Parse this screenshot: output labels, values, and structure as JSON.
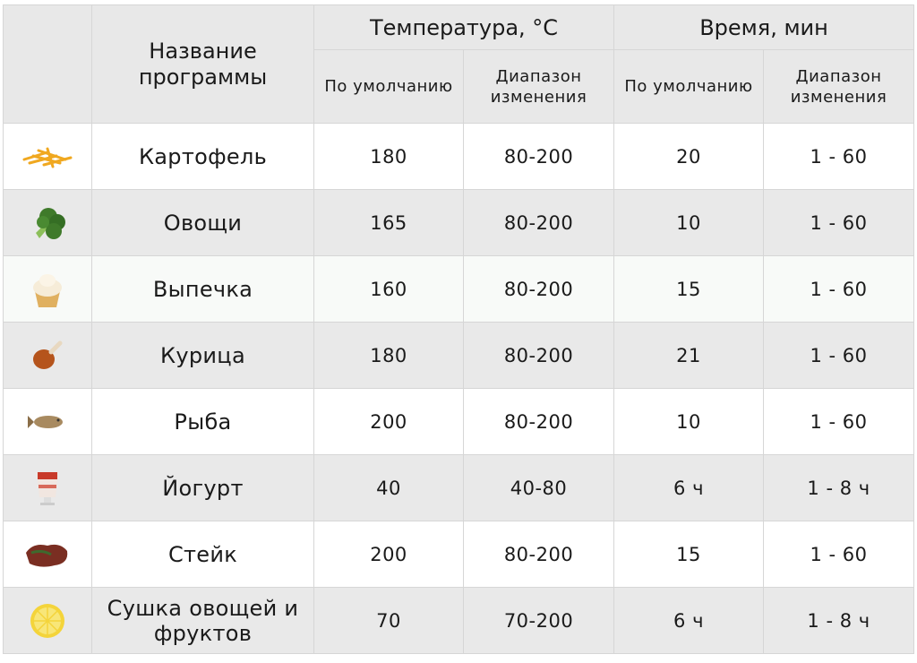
{
  "header": {
    "name": "Название программы",
    "temperature": "Температура, °C",
    "time": "Время, мин",
    "default": "По умолчанию",
    "range": "Диапазон изменения"
  },
  "rows": [
    {
      "icon": "fries-icon",
      "name": "Картофель",
      "temp_default": "180",
      "temp_range": "80-200",
      "time_default": "20",
      "time_range": "1 - 60"
    },
    {
      "icon": "broccoli-icon",
      "name": "Овощи",
      "temp_default": "165",
      "temp_range": "80-200",
      "time_default": "10",
      "time_range": "1 - 60"
    },
    {
      "icon": "cupcake-icon",
      "name": "Выпечка",
      "temp_default": "160",
      "temp_range": "80-200",
      "time_default": "15",
      "time_range": "1 - 60"
    },
    {
      "icon": "chicken-leg-icon",
      "name": "Курица",
      "temp_default": "180",
      "temp_range": "80-200",
      "time_default": "21",
      "time_range": "1 - 60"
    },
    {
      "icon": "fish-icon",
      "name": "Рыба",
      "temp_default": "200",
      "temp_range": "80-200",
      "time_default": "10",
      "time_range": "1 - 60"
    },
    {
      "icon": "yogurt-icon",
      "name": "Йогурт",
      "temp_default": "40",
      "temp_range": "40-80",
      "time_default": "6 ч",
      "time_range": "1 - 8 ч"
    },
    {
      "icon": "steak-icon",
      "name": "Стейк",
      "temp_default": "200",
      "temp_range": "80-200",
      "time_default": "15",
      "time_range": "1 - 60"
    },
    {
      "icon": "lemon-slice-icon",
      "name": "Сушка овощей и фруктов",
      "temp_default": "70",
      "temp_range": "70-200",
      "time_default": "6 ч",
      "time_range": "1 - 8 ч"
    }
  ]
}
